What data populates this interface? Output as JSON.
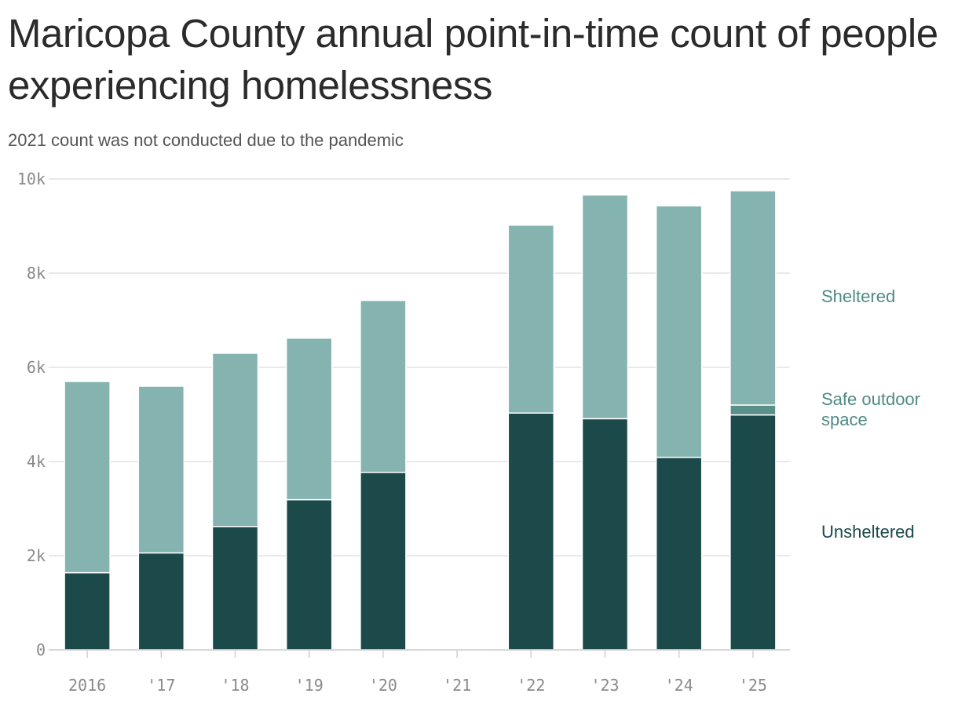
{
  "title": "Maricopa County annual point-in-time count of people experiencing homelessness",
  "subtitle": "2021 count was not conducted due to the pandemic",
  "chart_data": {
    "type": "bar",
    "stacked": true,
    "categories": [
      "2016",
      "'17",
      "'18",
      "'19",
      "'20",
      "'21",
      "'22",
      "'23",
      "'24",
      "'25"
    ],
    "series": [
      {
        "name": "Unsheltered",
        "color": "#1c4a4a",
        "values": [
          1640,
          2060,
          2620,
          3190,
          3770,
          null,
          5030,
          4910,
          4090,
          4990
        ]
      },
      {
        "name": "Safe outdoor space",
        "color": "#5a8f8a",
        "values": [
          0,
          0,
          0,
          0,
          0,
          null,
          0,
          0,
          0,
          210
        ]
      },
      {
        "name": "Sheltered",
        "color": "#84b3b0",
        "values": [
          4060,
          3540,
          3680,
          3430,
          3650,
          null,
          3990,
          4750,
          5340,
          4550
        ]
      }
    ],
    "y_ticks": [
      "0",
      "2k",
      "4k",
      "6k",
      "8k",
      "10k"
    ],
    "ylim": [
      0,
      10000
    ],
    "xlabel": "",
    "ylabel": "",
    "grid": true,
    "legend_position": "right, inline labels",
    "legend_colors": {
      "Sheltered": "#4f8a84",
      "Safe outdoor space": "#4f8a84",
      "Unsheltered": "#1c4a4a"
    }
  }
}
